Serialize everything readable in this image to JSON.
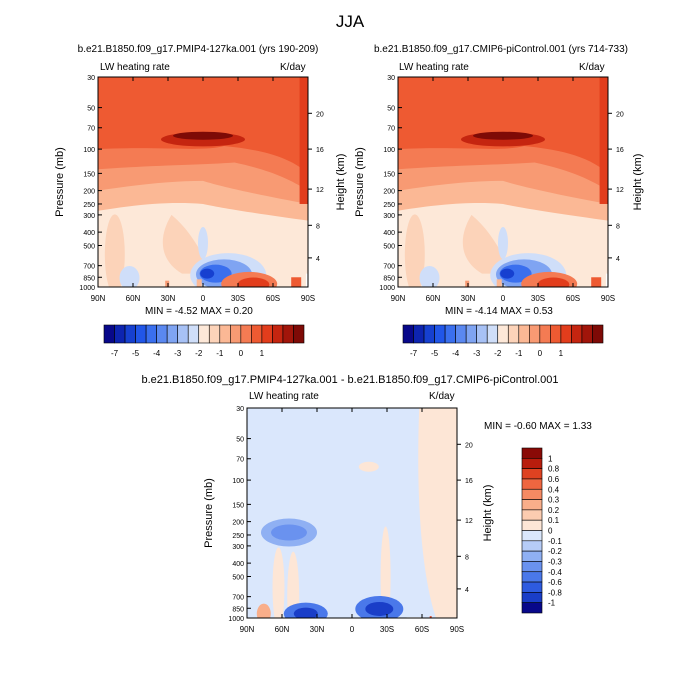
{
  "page_title": "JJA",
  "colors": {
    "blue_palette": [
      "#08088a",
      "#0d24b0",
      "#1640d0",
      "#2156e8",
      "#3a6fee",
      "#5a88f0",
      "#7fa4f2",
      "#a7c1f5",
      "#cfdef9"
    ],
    "red_palette": [
      "#fde8d8",
      "#fcd3b9",
      "#fbb895",
      "#f89a73",
      "#f47b53",
      "#ee5a32",
      "#e23d1c",
      "#c52510",
      "#a1150a",
      "#7e0a06"
    ],
    "diff_palette": [
      "#08088a",
      "#1a3ec8",
      "#2e5be0",
      "#4a78ea",
      "#6a92ef",
      "#8fb0f3",
      "#b6ccf7",
      "#dae7fc",
      "#fde6d6",
      "#fcccb0",
      "#f9ae8a",
      "#f58a63",
      "#ef6640",
      "#de4221",
      "#b81d0d",
      "#8a0a06"
    ]
  },
  "panels": [
    {
      "title": "b.e21.B1850.f09_g17.PMIP4-127ka.001 (yrs 190-209)",
      "left_label": "LW heating rate",
      "right_label": "K/day",
      "stats": "MIN =  -4.52  MAX =   0.20",
      "ylabel": "Pressure (mb)",
      "ylabel2": "Height (km)"
    },
    {
      "title": "b.e21.B1850.f09_g17.CMIP6-piControl.001 (yrs 714-733)",
      "left_label": "LW heating rate",
      "right_label": "K/day",
      "stats": "MIN =  -4.14  MAX =   0.53",
      "ylabel": "Pressure (mb)",
      "ylabel2": "Height (km)"
    },
    {
      "title": "b.e21.B1850.f09_g17.PMIP4-127ka.001 - b.e21.B1850.f09_g17.CMIP6-piControl.001",
      "left_label": "LW heating rate",
      "right_label": "K/day",
      "stats": "MIN =  -0.60  MAX =   1.33",
      "ylabel": "Pressure (mb)",
      "ylabel2": "Height (km)"
    }
  ],
  "chart_data": [
    {
      "type": "heatmap",
      "title": "b.e21.B1850.f09_g17.PMIP4-127ka.001 (yrs 190-209)",
      "xlabel": "",
      "ylabel": "Pressure (mb)",
      "ylabel_right": "Height (km)",
      "x_ticks": [
        "90N",
        "60N",
        "30N",
        "0",
        "30S",
        "60S",
        "90S"
      ],
      "y_ticks": [
        "30",
        "50",
        "70",
        "100",
        "150",
        "200",
        "250",
        "300",
        "400",
        "500",
        "700",
        "850",
        "1000"
      ],
      "y_ticks_right": [
        "20",
        "16",
        "12",
        "8",
        "4"
      ],
      "x_range": [
        "90N",
        "90S"
      ],
      "y_range": [
        30,
        1000
      ],
      "y_scale": "log",
      "variable": "LW heating rate",
      "units": "K/day",
      "min": -4.52,
      "max": 0.2,
      "colorbar_levels": [
        -7,
        -6.5,
        -6,
        -5.5,
        -5,
        -4.5,
        -4,
        -3.5,
        -3,
        -2.5,
        -2,
        -1.5,
        -1,
        -0.5,
        0,
        0.5,
        1,
        1.5
      ],
      "colorbar_labels": [
        "-7",
        "-5",
        "-4",
        "-3",
        "-2",
        "-1",
        "0",
        "1"
      ]
    },
    {
      "type": "heatmap",
      "title": "b.e21.B1850.f09_g17.CMIP6-piControl.001 (yrs 714-733)",
      "xlabel": "",
      "ylabel": "Pressure (mb)",
      "ylabel_right": "Height (km)",
      "x_ticks": [
        "90N",
        "60N",
        "30N",
        "0",
        "30S",
        "60S",
        "90S"
      ],
      "y_ticks": [
        "30",
        "50",
        "70",
        "100",
        "150",
        "200",
        "250",
        "300",
        "400",
        "500",
        "700",
        "850",
        "1000"
      ],
      "y_ticks_right": [
        "20",
        "16",
        "12",
        "8",
        "4"
      ],
      "x_range": [
        "90N",
        "90S"
      ],
      "y_range": [
        30,
        1000
      ],
      "y_scale": "log",
      "variable": "LW heating rate",
      "units": "K/day",
      "min": -4.14,
      "max": 0.53,
      "colorbar_levels": [
        -7,
        -6.5,
        -6,
        -5.5,
        -5,
        -4.5,
        -4,
        -3.5,
        -3,
        -2.5,
        -2,
        -1.5,
        -1,
        -0.5,
        0,
        0.5,
        1,
        1.5
      ],
      "colorbar_labels": [
        "-7",
        "-5",
        "-4",
        "-3",
        "-2",
        "-1",
        "0",
        "1"
      ]
    },
    {
      "type": "heatmap",
      "title": "b.e21.B1850.f09_g17.PMIP4-127ka.001 - b.e21.B1850.f09_g17.CMIP6-piControl.001",
      "xlabel": "",
      "ylabel": "Pressure (mb)",
      "ylabel_right": "Height (km)",
      "x_ticks": [
        "90N",
        "60N",
        "30N",
        "0",
        "30S",
        "60S",
        "90S"
      ],
      "y_ticks": [
        "30",
        "50",
        "70",
        "100",
        "150",
        "200",
        "250",
        "300",
        "400",
        "500",
        "700",
        "850",
        "1000"
      ],
      "y_ticks_right": [
        "20",
        "16",
        "12",
        "8",
        "4"
      ],
      "x_range": [
        "90N",
        "90S"
      ],
      "y_range": [
        30,
        1000
      ],
      "y_scale": "log",
      "variable": "LW heating rate",
      "units": "K/day",
      "min": -0.6,
      "max": 1.33,
      "colorbar_labels": [
        "1",
        "0.8",
        "0.6",
        "0.4",
        "0.3",
        "0.2",
        "0.1",
        "0",
        "-0.1",
        "-0.2",
        "-0.3",
        "-0.4",
        "-0.6",
        "-0.8",
        "-1"
      ]
    }
  ]
}
